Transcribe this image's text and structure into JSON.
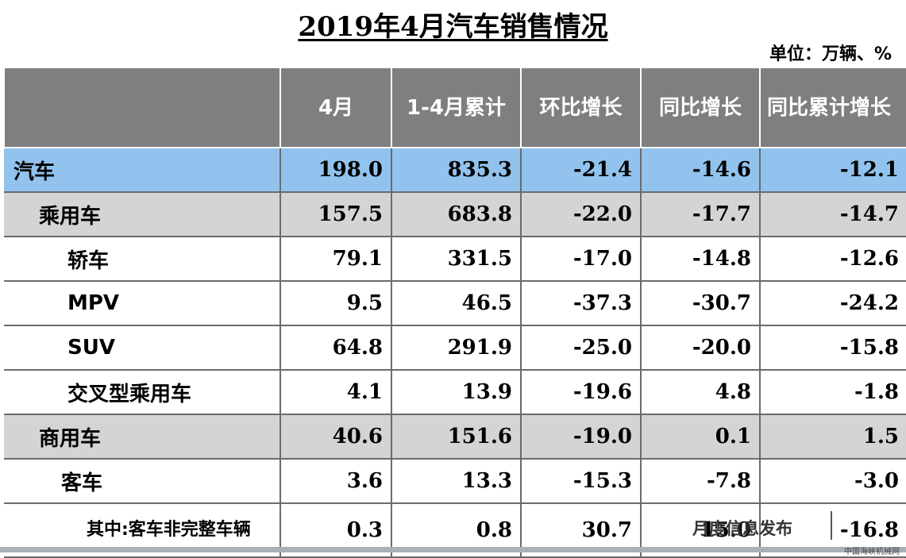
{
  "title": "2019年4月汽车销售情况",
  "unit": "单位：万辆、%",
  "table": {
    "headers": [
      "",
      "4月",
      "1-4月累计",
      "环比增长",
      "同比增长",
      "同比累计增长"
    ],
    "rows": [
      {
        "name": "汽车",
        "values": [
          "198.0",
          "835.3",
          "-21.4",
          "-14.6",
          "-12.1"
        ]
      },
      {
        "name": "乘用车",
        "values": [
          "157.5",
          "683.8",
          "-22.0",
          "-17.7",
          "-14.7"
        ]
      },
      {
        "name": "轿车",
        "values": [
          "79.1",
          "331.5",
          "-17.0",
          "-14.8",
          "-12.6"
        ]
      },
      {
        "name": "MPV",
        "values": [
          "9.5",
          "46.5",
          "-37.3",
          "-30.7",
          "-24.2"
        ]
      },
      {
        "name": "SUV",
        "values": [
          "64.8",
          "291.9",
          "-25.0",
          "-20.0",
          "-15.8"
        ]
      },
      {
        "name": "交叉型乘用车",
        "values": [
          "4.1",
          "13.9",
          "-19.6",
          "4.8",
          "-1.8"
        ]
      },
      {
        "name": "商用车",
        "values": [
          "40.6",
          "151.6",
          "-19.0",
          "0.1",
          "1.5"
        ]
      },
      {
        "name": "客车",
        "values": [
          "3.6",
          "13.3",
          "-15.3",
          "-7.8",
          "-3.0"
        ]
      },
      {
        "name": "其中:客车非完整车辆",
        "values": [
          "0.3",
          "0.8",
          "30.7",
          "15.0",
          "-16.8"
        ]
      }
    ]
  },
  "footer": {
    "text": "月度信息发布",
    "watermark": "中国海峡机械网"
  },
  "colors": {
    "header_bg": "#7f7f7f",
    "highlight_row": "#92c3ee",
    "gray_row": "#d4d4d4"
  }
}
